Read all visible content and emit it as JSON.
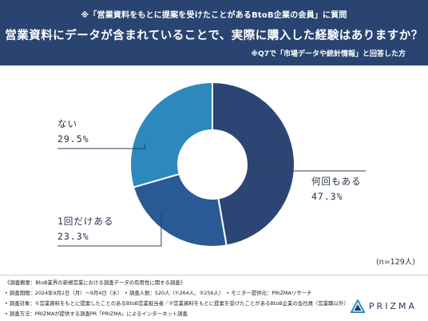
{
  "header": {
    "subtitle": "※「営業資料をもとに提案を受けたことがあるBtoB企業の会員」に質問",
    "title": "営業資料にデータが含まれていることで、実際に購入した経験はありますか？",
    "note": "※Q7で「市場データや統計情報」と回答した方"
  },
  "chart_data": {
    "type": "pie",
    "categories": [
      "何回もある",
      "1回だけある",
      "ない"
    ],
    "values": [
      47.3,
      23.3,
      29.5
    ],
    "percent_labels": [
      "47.3%",
      "23.3%",
      "29.5%"
    ],
    "colors": [
      "#2c4574",
      "#2a5a96",
      "#2d88be"
    ],
    "donut": true,
    "start": "top",
    "direction": "clockwise"
  },
  "sample": "(n=129人)",
  "footer": {
    "lines": [
      "《調査概要：BtoB業界の新規営業における調査データの有用性に関する調査》",
      "• 調査期間：2024年9月2日（月）～9月4日（水）　• 調査人数：520人（①264人、②256人）　• モニター提供元：PRIZMAリサーチ",
      "• 調査対象：①営業資料をもとに提案したことのあるBtoB営業担当者／②営業資料をもとに提案を受けたことがあるBtoB企業の会社員（営業職以外）",
      "• 調査方法：PRIZMAが提供する調査PR「PRIZMA」によるインターネット調査"
    ]
  },
  "logo": {
    "text": "PRIZMA"
  }
}
